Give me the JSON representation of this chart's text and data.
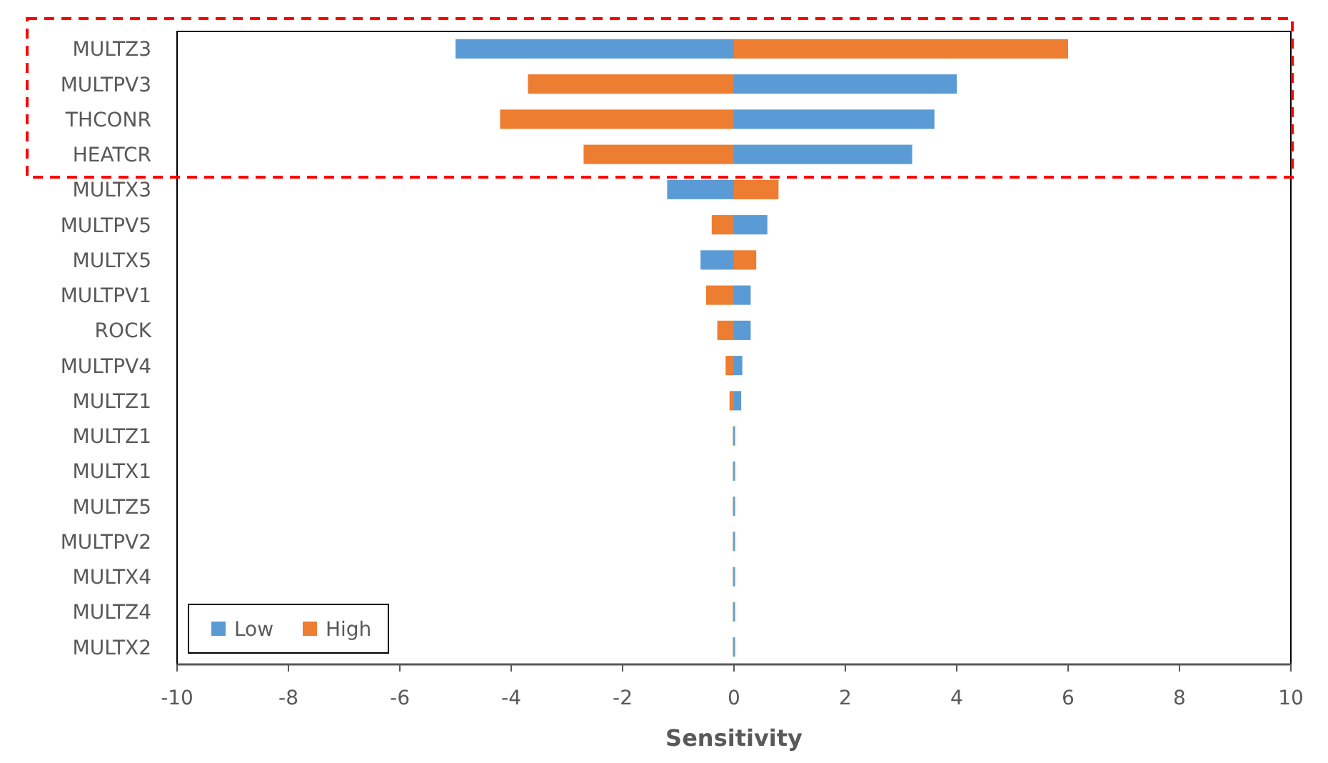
{
  "chart_data": {
    "type": "bar",
    "orientation": "horizontal",
    "stacked": true,
    "xlabel": "Sensitivity",
    "categories": [
      "MULTZ3",
      "MULTPV3",
      "THCONR",
      "HEATCR",
      "MULTX3",
      "MULTPV5",
      "MULTX5",
      "MULTPV1",
      "ROCK",
      "MULTPV4",
      "MULTZ1",
      "MULTZ1",
      "MULTX1",
      "MULTZ5",
      "MULTPV2",
      "MULTX4",
      "MULTZ4",
      "MULTX2"
    ],
    "series": [
      {
        "name": "Low",
        "color": "#5b9bd5",
        "values": [
          -5,
          4,
          3.6,
          3.2,
          -1.2,
          0.6,
          -0.6,
          0.3,
          0.3,
          0.15,
          0.13,
          0.02,
          0.02,
          0.02,
          0.02,
          0.02,
          0.02,
          0.02
        ]
      },
      {
        "name": "High",
        "color": "#ed7d31",
        "values": [
          6,
          -3.7,
          -4.2,
          -2.7,
          0.8,
          -0.4,
          0.4,
          -0.5,
          -0.3,
          -0.15,
          -0.08,
          -0.02,
          -0.02,
          -0.02,
          -0.02,
          -0.02,
          -0.02,
          -0.02
        ]
      }
    ],
    "xlim": [
      -10,
      10
    ],
    "xticks": [
      -10,
      -8,
      -6,
      -4,
      -2,
      0,
      2,
      4,
      6,
      8,
      10
    ],
    "grid": false,
    "legend": "bottom left"
  }
}
